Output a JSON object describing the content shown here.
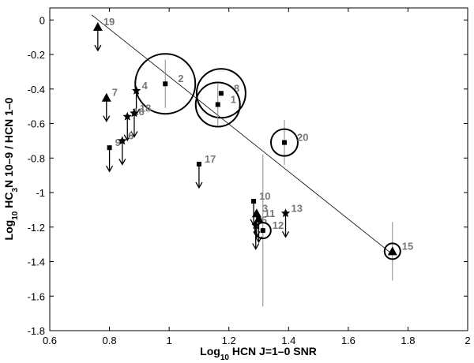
{
  "chart_data": {
    "type": "scatter",
    "xlabel": [
      "Log",
      "10",
      " HCN J=1–0 SNR"
    ],
    "ylabel": [
      "Log",
      "10",
      " HC",
      "3",
      "N 10–9 / HCN 1–0"
    ],
    "xlim": [
      0.6,
      2
    ],
    "ylim": [
      -1.8,
      0.07
    ],
    "xticks": [
      0.6,
      0.8,
      1,
      1.2,
      1.4,
      1.6,
      1.8,
      2
    ],
    "yticks": [
      0,
      -0.2,
      -0.4,
      -0.6,
      -0.8,
      -1,
      -1.2,
      -1.4,
      -1.6,
      -1.8
    ],
    "point_labels": [
      "19",
      "7",
      "2",
      "4",
      "8",
      "1",
      "16",
      "18",
      "9",
      "6",
      "17",
      "20",
      "10",
      "3",
      "11",
      "13",
      "5",
      "12",
      "15"
    ],
    "x": [
      0.761,
      0.79,
      0.987,
      0.89,
      1.174,
      1.163,
      0.86,
      0.883,
      0.8,
      0.843,
      1.1,
      1.386,
      1.283,
      1.293,
      1.3,
      1.39,
      1.29,
      1.314,
      1.748
    ],
    "values": [
      -0.04,
      -0.45,
      -0.37,
      -0.41,
      -0.425,
      -0.49,
      -0.56,
      -0.54,
      -0.74,
      -0.7,
      -0.835,
      -0.71,
      -1.05,
      -1.12,
      -1.15,
      -1.12,
      -1.19,
      -1.22,
      -1.34
    ],
    "markers": [
      "triangle",
      "triangle",
      "square",
      "star",
      "square",
      "square",
      "star",
      "star",
      "square",
      "star",
      "square",
      "square",
      "square",
      "triangle",
      "triangle",
      "star",
      "star",
      "square",
      "triangle"
    ],
    "upper_limit": [
      true,
      true,
      false,
      true,
      false,
      false,
      true,
      true,
      true,
      true,
      true,
      false,
      true,
      true,
      true,
      true,
      true,
      false,
      false
    ],
    "sizes": [
      null,
      null,
      38,
      null,
      31,
      28,
      null,
      null,
      null,
      null,
      null,
      17,
      null,
      null,
      null,
      null,
      null,
      10,
      10
    ],
    "errors": [
      null,
      null,
      0.14,
      null,
      null,
      0.12,
      null,
      null,
      null,
      null,
      null,
      0.13,
      null,
      null,
      null,
      null,
      null,
      0.44,
      0.17
    ],
    "fit_line": {
      "x": [
        0.74,
        1.75
      ],
      "y": [
        0.03,
        -1.36
      ]
    },
    "color": "#000000",
    "label_color": "#777777"
  }
}
